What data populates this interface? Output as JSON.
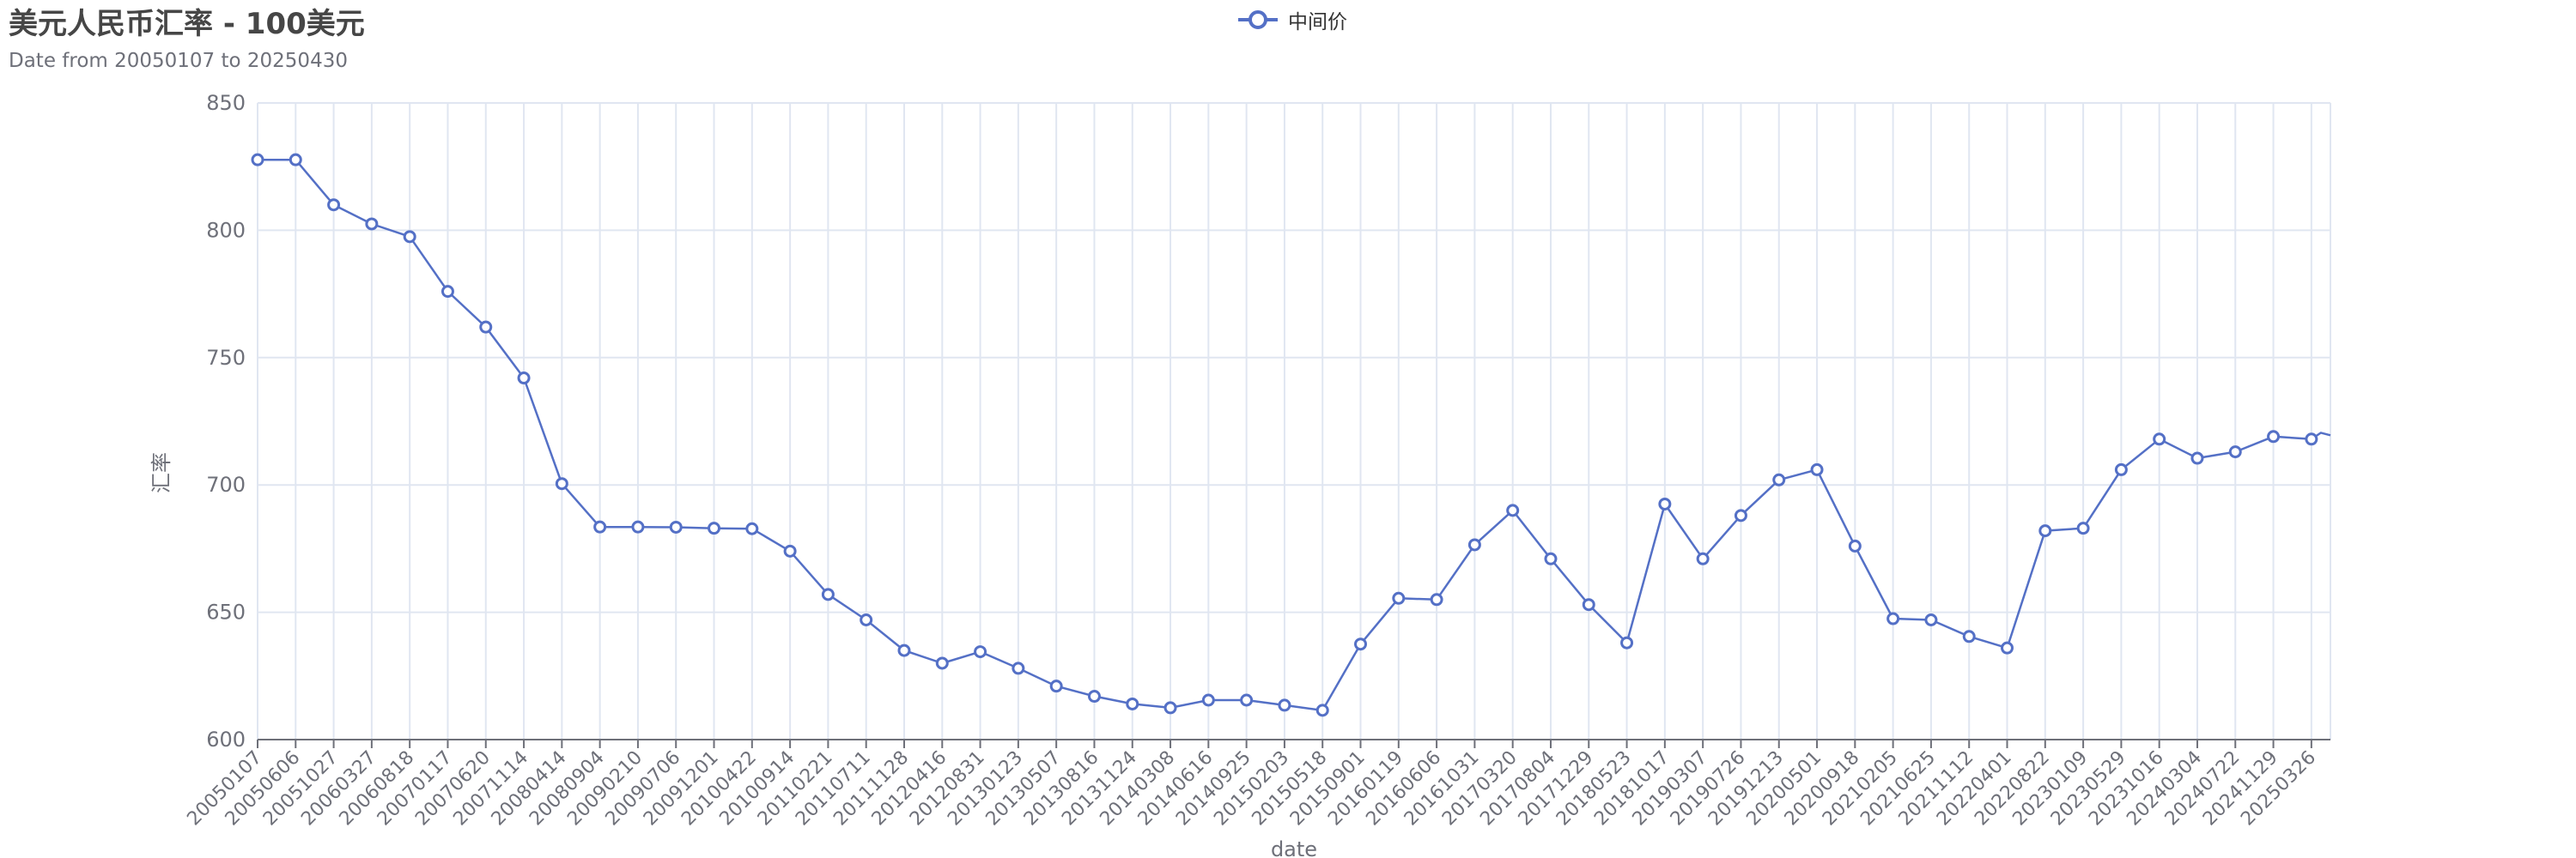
{
  "chart_data": {
    "type": "line",
    "title": "美元人民币汇率 - 100美元",
    "subtitle": "Date from 20050107 to 20250430",
    "xlabel": "date",
    "ylabel": "汇率",
    "ylim": [
      600,
      850
    ],
    "yticks": [
      600,
      650,
      700,
      750,
      800,
      850
    ],
    "legend": "top-center",
    "grid": true,
    "line_color": "#5470c6",
    "categories": [
      "20050107",
      "20050606",
      "20051027",
      "20060327",
      "20060818",
      "20070117",
      "20070620",
      "20071114",
      "20080414",
      "20080904",
      "20090210",
      "20090706",
      "20091201",
      "20100422",
      "20100914",
      "20110221",
      "20110711",
      "20111128",
      "20120416",
      "20120831",
      "20130123",
      "20130507",
      "20130816",
      "20131124",
      "20140308",
      "20140616",
      "20140925",
      "20150203",
      "20150518",
      "20150901",
      "20160119",
      "20160606",
      "20161031",
      "20170320",
      "20170804",
      "20171229",
      "20180523",
      "20181017",
      "20190307",
      "20190726",
      "20191213",
      "20200501",
      "20200918",
      "20210205",
      "20210625",
      "20211112",
      "20220401",
      "20220822",
      "20230109",
      "20230529",
      "20231016",
      "20240304",
      "20240722",
      "20241129",
      "20250326"
    ],
    "series": [
      {
        "name": "中间价",
        "values": [
          827.7,
          827.7,
          810.0,
          802.5,
          797.5,
          776.0,
          762.0,
          742.0,
          700.5,
          683.5,
          683.5,
          683.4,
          683.0,
          682.8,
          674.0,
          657.0,
          647.0,
          635.0,
          630.0,
          634.5,
          628.0,
          621.0,
          617.0,
          614.0,
          612.5,
          615.5,
          615.5,
          613.5,
          611.5,
          637.5,
          655.5,
          655.0,
          676.5,
          690.0,
          671.0,
          653.0,
          638.0,
          692.5,
          671.0,
          688.0,
          702.0,
          706.0,
          676.0,
          647.5,
          647.0,
          640.5,
          636.0,
          682.0,
          683.0,
          706.0,
          718.0,
          710.5,
          713.0,
          719.0,
          718.0
        ],
        "extra_points": [
          {
            "after_index": 54,
            "value": 720.5
          },
          {
            "after_index": 54,
            "value": 719.5
          }
        ]
      }
    ]
  }
}
